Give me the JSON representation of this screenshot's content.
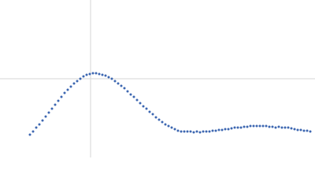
{
  "chart_data": {
    "type": "scatter",
    "color": "#3d67b1",
    "x": [
      38,
      42,
      46,
      50,
      54,
      58,
      62,
      66,
      70,
      74,
      78,
      82,
      86,
      90,
      94,
      98,
      102,
      106,
      110,
      114,
      118,
      122,
      126,
      130,
      134,
      138,
      142,
      146,
      150,
      154,
      158,
      162,
      166,
      170,
      174,
      178,
      182,
      186,
      190,
      194,
      198,
      202,
      206,
      210,
      214,
      218,
      222,
      226,
      230,
      234,
      238,
      242,
      246,
      250,
      254,
      258,
      262,
      266,
      270,
      274,
      278,
      282,
      286,
      290,
      294,
      298,
      302,
      306,
      310,
      314,
      318,
      322,
      326,
      330,
      334,
      338,
      342,
      346,
      350,
      354,
      358,
      362,
      366,
      370,
      374,
      378,
      382,
      386,
      390,
      394
    ],
    "values": [
      29,
      33,
      38,
      42,
      47,
      52,
      57,
      62,
      67,
      72,
      77,
      82,
      86,
      90,
      94,
      97,
      100,
      103,
      105,
      106,
      107,
      107,
      106,
      105,
      104,
      102,
      100,
      97,
      94,
      91,
      88,
      84,
      80,
      77,
      73,
      69,
      65,
      62,
      58,
      55,
      51,
      48,
      45,
      42,
      40,
      38,
      36,
      34,
      33,
      33,
      33,
      33,
      32,
      33,
      32,
      33,
      33,
      33,
      34,
      34,
      35,
      35,
      36,
      36,
      37,
      38,
      38,
      38,
      39,
      39,
      40,
      40,
      40,
      40,
      40,
      40,
      39,
      39,
      38,
      39,
      38,
      38,
      38,
      37,
      36,
      35,
      35,
      34,
      34,
      33
    ],
    "xlim": [
      0,
      400
    ],
    "ylim": [
      0,
      200
    ],
    "xticks": [
      115
    ],
    "yticks": [
      100
    ],
    "grid": true
  }
}
